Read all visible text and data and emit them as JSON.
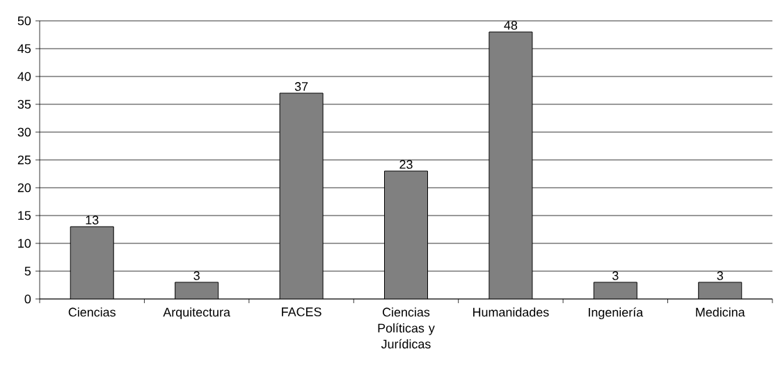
{
  "chart_data": {
    "type": "bar",
    "categories": [
      "Ciencias",
      "Arquitectura",
      "FACES",
      "Ciencias Políticas y Jurídicas",
      "Humanidades",
      "Ingeniería",
      "Medicina"
    ],
    "values": [
      13,
      3,
      37,
      23,
      48,
      3,
      3
    ],
    "color": "#808080",
    "ylim": [
      0,
      50
    ],
    "yticks": [
      0,
      5,
      10,
      15,
      20,
      25,
      30,
      35,
      40,
      45,
      50
    ],
    "grid": "y",
    "data_labels": true
  }
}
